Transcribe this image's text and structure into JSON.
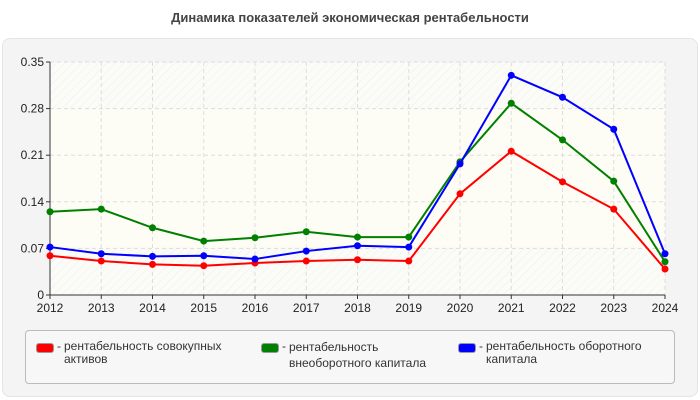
{
  "chart_data": {
    "type": "line",
    "title": "Динамика показателей экономическая рентабельности",
    "xlabel": "",
    "ylabel": "",
    "categories": [
      "2012",
      "2013",
      "2014",
      "2015",
      "2016",
      "2017",
      "2018",
      "2019",
      "2020",
      "2021",
      "2022",
      "2023",
      "2024"
    ],
    "ylim": [
      0,
      0.35
    ],
    "yticks": [
      "0",
      "0.07",
      "0.14",
      "0.21",
      "0.28",
      "0.35"
    ],
    "grid": true,
    "legend_position": "bottom",
    "series": [
      {
        "name": "рентабельность совокупных активов",
        "color": "#ff0000",
        "values": [
          0.059,
          0.051,
          0.046,
          0.044,
          0.048,
          0.051,
          0.053,
          0.051,
          0.152,
          0.216,
          0.17,
          0.129,
          0.039
        ]
      },
      {
        "name": "рентабельность внеоборотного капитала",
        "color": "#008000",
        "values": [
          0.125,
          0.129,
          0.101,
          0.081,
          0.086,
          0.095,
          0.087,
          0.087,
          0.2,
          0.288,
          0.233,
          0.171,
          0.05
        ]
      },
      {
        "name": "рентабельность оборотного капитала",
        "color": "#0000ff",
        "values": [
          0.072,
          0.062,
          0.058,
          0.059,
          0.054,
          0.066,
          0.074,
          0.072,
          0.197,
          0.33,
          0.297,
          0.249,
          0.062
        ]
      }
    ]
  },
  "legend_separator": "-"
}
